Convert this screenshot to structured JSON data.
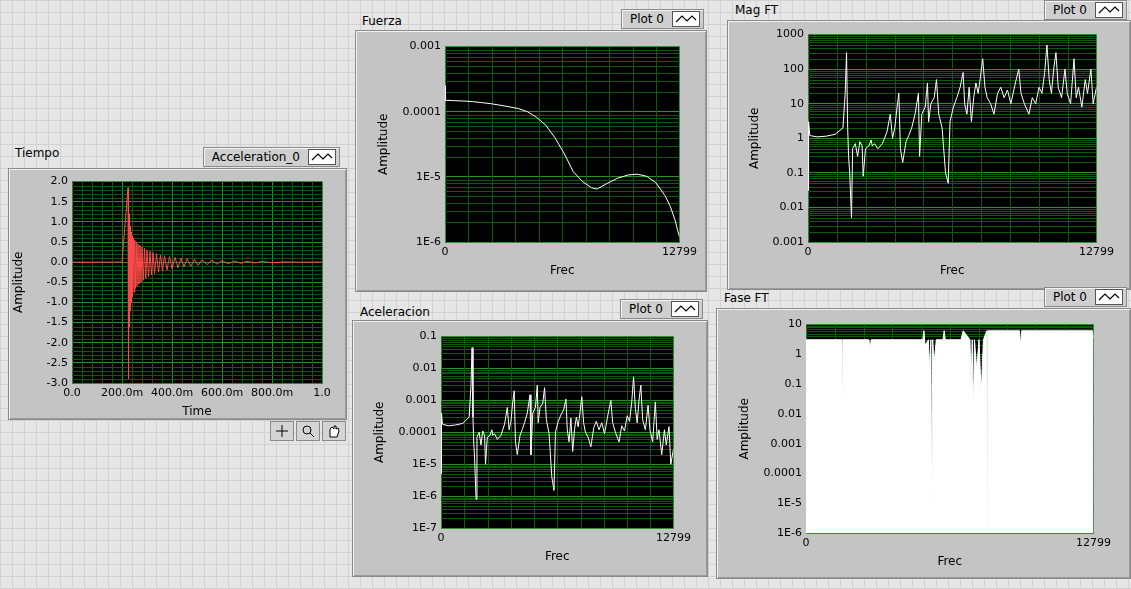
{
  "chart_data": [
    {
      "type": "line",
      "title": "Tiempo",
      "x_label": "Time",
      "y_label": "Amplitude",
      "legend": "top-right",
      "grid": true,
      "xlim": [
        0,
        1
      ],
      "xticks": [
        {
          "value": 0,
          "label": "0.0"
        },
        {
          "value": 0.2,
          "label": "200.0m"
        },
        {
          "value": 0.4,
          "label": "400.0m"
        },
        {
          "value": 0.6,
          "label": "600.0m"
        },
        {
          "value": 0.8,
          "label": "800.0m"
        },
        {
          "value": 1,
          "label": "1.0"
        }
      ],
      "ylim": [
        -3,
        2
      ],
      "yticks": [
        {
          "value": -3,
          "label": "-3.0"
        },
        {
          "value": -2.5,
          "label": "-2.5"
        },
        {
          "value": -2,
          "label": "-2.0"
        },
        {
          "value": -1.5,
          "label": "-1.5"
        },
        {
          "value": -1,
          "label": "-1.0"
        },
        {
          "value": -0.5,
          "label": "-0.5"
        },
        {
          "value": 0,
          "label": "0.0"
        },
        {
          "value": 0.5,
          "label": "0.5"
        },
        {
          "value": 1,
          "label": "1.0"
        },
        {
          "value": 1.5,
          "label": "1.5"
        },
        {
          "value": 2,
          "label": "2.0"
        }
      ],
      "x": [
        0,
        0.1,
        0.2,
        0.224,
        0.226,
        0.228,
        0.23,
        0.232,
        0.234,
        0.236,
        0.238,
        0.24,
        0.242,
        0.245,
        0.248,
        0.251,
        0.254,
        0.257,
        0.26,
        0.264,
        0.268,
        0.272,
        0.276,
        0.28,
        0.285,
        0.29,
        0.295,
        0.3,
        0.306,
        0.312,
        0.318,
        0.324,
        0.33,
        0.338,
        0.346,
        0.354,
        0.362,
        0.37,
        0.38,
        0.39,
        0.4,
        0.412,
        0.424,
        0.436,
        0.448,
        0.46,
        0.475,
        0.49,
        0.505,
        0.52,
        0.54,
        0.56,
        0.58,
        0.6,
        0.625,
        0.65,
        0.675,
        0.7,
        0.73,
        0.76,
        0.8,
        0.85,
        0.9,
        0.95,
        1
      ],
      "series": [
        {
          "name": "Acceleration_0",
          "color": "#ff4a4a",
          "values": [
            0,
            0,
            0,
            1.85,
            -2.9,
            1.2,
            -1.6,
            0.9,
            -1.2,
            0.75,
            -1.0,
            0.65,
            -0.85,
            0.6,
            -0.75,
            0.55,
            -0.65,
            0.5,
            -0.6,
            0.45,
            -0.55,
            0.42,
            -0.5,
            0.38,
            -0.45,
            0.34,
            -0.4,
            0.3,
            -0.36,
            0.27,
            -0.32,
            0.24,
            -0.28,
            0.21,
            -0.25,
            0.18,
            -0.22,
            0.16,
            -0.19,
            0.14,
            -0.16,
            0.12,
            -0.14,
            0.1,
            -0.12,
            0.09,
            -0.1,
            0.07,
            -0.08,
            0.06,
            -0.06,
            0.05,
            -0.05,
            0.04,
            -0.04,
            0.03,
            -0.03,
            0.02,
            -0.02,
            0.015,
            -0.01,
            0.005,
            0,
            0,
            0
          ]
        }
      ]
    },
    {
      "type": "line",
      "title": "Fuerza",
      "x_label": "Frec",
      "y_label": "Amplitude",
      "legend": "top-right",
      "grid": true,
      "log": "y",
      "xlim": [
        0,
        12799
      ],
      "xticks": [
        0,
        12799
      ],
      "ylim": [
        1e-06,
        0.001
      ],
      "yticks": [
        {
          "value": 1e-06,
          "label": "1E-6"
        },
        {
          "value": 1e-05,
          "label": "1E-5"
        },
        0.0001,
        0.001
      ],
      "x": [
        0,
        20,
        500,
        1000,
        1500,
        2000,
        2500,
        3000,
        3500,
        4000,
        4500,
        5000,
        5500,
        6000,
        6500,
        7000,
        7500,
        8000,
        8300,
        8800,
        9400,
        10000,
        10500,
        11000,
        11500,
        12000,
        12300,
        12550,
        12700,
        12799
      ],
      "series": [
        {
          "name": "Plot 0",
          "color": "#ffffff",
          "values": [
            0.00025,
            0.00015,
            0.000148,
            0.000146,
            0.000143,
            0.000138,
            0.000133,
            0.000126,
            0.000119,
            0.000112,
            0.0001,
            8.2e-05,
            6.2e-05,
            4e-05,
            2.3e-05,
            1.2e-05,
            8.5e-06,
            6.8e-06,
            6.5e-06,
            7.8e-06,
            9.5e-06,
            1.07e-05,
            1.1e-05,
            1.02e-05,
            8.2e-06,
            5.2e-06,
            3.5e-06,
            2.2e-06,
            1.5e-06,
            1.2e-06
          ]
        }
      ]
    },
    {
      "type": "line",
      "title": "Mag FT",
      "x_label": "Frec",
      "y_label": "Amplitude",
      "legend": "top-right",
      "grid": true,
      "log": "y",
      "xlim": [
        0,
        12799
      ],
      "xticks": [
        0,
        12799
      ],
      "ylim": [
        0.001,
        1000
      ],
      "yticks": [
        0.001,
        0.01,
        0.1,
        1,
        10,
        100,
        1000
      ],
      "x": [
        0,
        10,
        40,
        80,
        400,
        800,
        1200,
        1550,
        1650,
        1710,
        1760,
        1800,
        1850,
        1930,
        1980,
        2100,
        2200,
        2300,
        2400,
        2450,
        2550,
        2700,
        2800,
        2850,
        2950,
        3100,
        3300,
        3500,
        3650,
        3750,
        3850,
        3950,
        4030,
        4100,
        4200,
        4350,
        4470,
        4600,
        4750,
        4900,
        4950,
        5050,
        5200,
        5300,
        5350,
        5450,
        5600,
        5700,
        5800,
        5950,
        6100,
        6220,
        6300,
        6450,
        6600,
        6750,
        6880,
        6950,
        7050,
        7150,
        7250,
        7350,
        7450,
        7550,
        7650,
        7750,
        7850,
        7950,
        8100,
        8250,
        8410,
        8550,
        8700,
        8850,
        9000,
        9200,
        9350,
        9450,
        9600,
        9800,
        9950,
        10100,
        10250,
        10380,
        10500,
        10600,
        10700,
        10800,
        10900,
        11000,
        11100,
        11250,
        11400,
        11500,
        11650,
        11800,
        11900,
        12000,
        12150,
        12300,
        12400,
        12550,
        12650,
        12799
      ],
      "series": [
        {
          "name": "Plot 0",
          "color": "#ffffff",
          "values": [
            1.2,
            0.03,
            3,
            1.2,
            1.1,
            1.15,
            1.3,
            2,
            20,
            300,
            2,
            0.3,
            0.1,
            0.005,
            0.5,
            0.7,
            0.3,
            0.8,
            0.6,
            0.08,
            0.5,
            0.6,
            0.9,
            0.6,
            0.7,
            0.5,
            0.7,
            1.5,
            5,
            1,
            2,
            8,
            20,
            0.5,
            0.2,
            0.8,
            1.2,
            2,
            5,
            20,
            0.3,
            5,
            8,
            40,
            3,
            10,
            15,
            50,
            5,
            2,
            0.1,
            0.05,
            3,
            8,
            15,
            30,
            80,
            10,
            5,
            30,
            3,
            15,
            40,
            20,
            60,
            200,
            30,
            15,
            10,
            5,
            20,
            30,
            15,
            25,
            10,
            40,
            100,
            20,
            10,
            5,
            15,
            10,
            30,
            20,
            80,
            500,
            50,
            20,
            100,
            300,
            30,
            15,
            100,
            20,
            10,
            200,
            15,
            30,
            8,
            50,
            20,
            100,
            10,
            30
          ]
        }
      ]
    },
    {
      "type": "line",
      "title": "Aceleracion",
      "x_label": "Frec",
      "y_label": "Amplitude",
      "legend": "top-right",
      "grid": true,
      "log": "y",
      "xlim": [
        0,
        12799
      ],
      "xticks": [
        0,
        12799
      ],
      "ylim": [
        1e-07,
        0.1
      ],
      "yticks": [
        {
          "value": 1e-07,
          "label": "1E-7"
        },
        {
          "value": 1e-06,
          "label": "1E-6"
        },
        {
          "value": 1e-05,
          "label": "1E-5"
        },
        0.0001,
        0.001,
        0.01,
        0.1
      ],
      "x": [
        0,
        10,
        40,
        80,
        400,
        800,
        1200,
        1550,
        1650,
        1710,
        1760,
        1800,
        1850,
        1930,
        1980,
        2100,
        2200,
        2300,
        2400,
        2450,
        2550,
        2700,
        2800,
        2850,
        2950,
        3100,
        3300,
        3500,
        3650,
        3750,
        3850,
        3950,
        4030,
        4100,
        4200,
        4350,
        4470,
        4600,
        4750,
        4900,
        4950,
        5050,
        5200,
        5300,
        5350,
        5450,
        5600,
        5700,
        5800,
        5950,
        6100,
        6220,
        6300,
        6450,
        6600,
        6750,
        6880,
        6950,
        7050,
        7150,
        7250,
        7350,
        7450,
        7550,
        7650,
        7750,
        7850,
        7950,
        8100,
        8250,
        8410,
        8550,
        8700,
        8850,
        9000,
        9200,
        9350,
        9450,
        9600,
        9800,
        9950,
        10100,
        10250,
        10380,
        10500,
        10600,
        10700,
        10800,
        10900,
        11000,
        11100,
        11250,
        11400,
        11500,
        11650,
        11800,
        11900,
        12000,
        12150,
        12300,
        12400,
        12550,
        12650,
        12799
      ],
      "series": [
        {
          "name": "Plot 0",
          "color": "#ffffff",
          "values": [
            0.00025,
            5e-06,
            0.0004,
            0.00018,
            0.00016,
            0.00017,
            0.00019,
            0.0003,
            0.003,
            0.045,
            0.0003,
            5e-05,
            1.5e-05,
            8e-07,
            7e-05,
            0.0001,
            4e-05,
            0.00011,
            8e-05,
            1e-05,
            7e-05,
            8e-05,
            0.00012,
            8e-05,
            9e-05,
            6e-05,
            8e-05,
            0.00018,
            0.0006,
            0.00012,
            0.00022,
            0.0009,
            0.002,
            5e-05,
            2e-05,
            8e-05,
            0.00012,
            0.0002,
            0.0004,
            0.0015,
            2e-05,
            0.0004,
            0.0006,
            0.003,
            0.0002,
            0.0006,
            0.0008,
            0.0025,
            0.00025,
            9e-05,
            4e-06,
            1.5e-06,
            0.0001,
            0.00022,
            0.00035,
            0.0005,
            0.0011,
            0.00012,
            5e-05,
            0.00028,
            2.5e-05,
            0.00012,
            0.0003,
            0.00015,
            0.0004,
            0.0013,
            0.0002,
            0.0001,
            7e-05,
            3.5e-05,
            0.00014,
            0.00022,
            0.00012,
            0.0002,
            9e-05,
            0.00038,
            0.001,
            0.0002,
            0.0001,
            5e-05,
            0.00016,
            0.00011,
            0.00033,
            0.00022,
            0.00088,
            0.0055,
            0.00055,
            0.0002,
            0.001,
            0.003,
            0.00025,
            0.00012,
            0.0007,
            0.00012,
            5e-05,
            0.0009,
            6e-05,
            0.00012,
            2e-05,
            0.00012,
            4e-05,
            0.00015,
            1e-05,
            3e-05
          ]
        }
      ]
    },
    {
      "type": "area",
      "title": "Fase FT",
      "x_label": "Frec",
      "y_label": "Amplitude",
      "legend": "top-right",
      "grid": true,
      "log": "y",
      "xlim": [
        0,
        12799
      ],
      "xticks": [
        0,
        12799
      ],
      "ylim": [
        1e-06,
        10
      ],
      "yticks": [
        {
          "value": 1e-06,
          "label": "1E-6"
        },
        {
          "value": 1e-05,
          "label": "1E-5"
        },
        0.0001,
        0.001,
        0.01,
        0.1,
        1,
        10
      ],
      "x": [
        0,
        50,
        1600,
        1620,
        1640,
        2800,
        2850,
        2900,
        4000,
        5000,
        5200,
        5250,
        5300,
        5450,
        5500,
        5560,
        5600,
        5640,
        5700,
        5800,
        6000,
        6100,
        6150,
        6200,
        6900,
        7000,
        7300,
        7350,
        7400,
        7450,
        7500,
        7600,
        7700,
        7800,
        7900,
        8050,
        8070,
        8090,
        8200,
        9000,
        9500,
        9550,
        9600,
        10500,
        11000,
        11500,
        12000,
        12500,
        12750,
        12799
      ],
      "series": [
        {
          "name": "Plot 0",
          "color": "#ffffff",
          "values": [
            3.1,
            3.1,
            3.1,
            0.03,
            3.1,
            3.1,
            1.5,
            3.1,
            3.1,
            3.1,
            3.1,
            6.2,
            2,
            3.1,
            0.3,
            3.1,
            1e-06,
            3.1,
            0.5,
            3.1,
            3.1,
            3.1,
            6.2,
            3.1,
            3.1,
            6.2,
            3.1,
            0.1,
            3.1,
            0.01,
            3.1,
            0.3,
            3.1,
            0.05,
            3.1,
            6.2,
            1e-06,
            6.2,
            6.2,
            6.2,
            6.2,
            2,
            6.2,
            6.2,
            6.2,
            6.2,
            6.2,
            6.2,
            6.2,
            3.5
          ]
        }
      ]
    }
  ]
}
